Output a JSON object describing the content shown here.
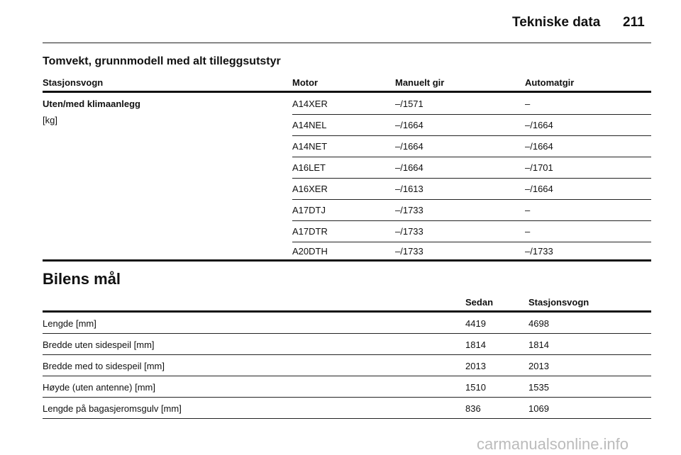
{
  "header": {
    "section": "Tekniske data",
    "page": "211"
  },
  "weight_table": {
    "title": "Tomvekt, grunnmodell med alt tilleggsutstyr",
    "columns": [
      "Stasjonsvogn",
      "Motor",
      "Manuelt gir",
      "Automatgir"
    ],
    "row_label": "Uten/med klimaanlegg",
    "unit": "[kg]",
    "rows": [
      [
        "A14XER",
        "–/1571",
        "–"
      ],
      [
        "A14NEL",
        "–/1664",
        "–/1664"
      ],
      [
        "A14NET",
        "–/1664",
        "–/1664"
      ],
      [
        "A16LET",
        "–/1664",
        "–/1701"
      ],
      [
        "A16XER",
        "–/1613",
        "–/1664"
      ],
      [
        "A17DTJ",
        "–/1733",
        "–"
      ],
      [
        "A17DTR",
        "–/1733",
        "–"
      ],
      [
        "A20DTH",
        "–/1733",
        "–/1733"
      ]
    ]
  },
  "dimensions_table": {
    "title": "Bilens mål",
    "columns": [
      "Sedan",
      "Stasjonsvogn"
    ],
    "rows": [
      [
        "Lengde [mm]",
        4419,
        4698
      ],
      [
        "Bredde uten sidespeil [mm]",
        1814,
        1814
      ],
      [
        "Bredde med to sidespeil [mm]",
        2013,
        2013
      ],
      [
        "Høyde (uten antenne) [mm]",
        1510,
        1535
      ],
      [
        "Lengde på bagasjeromsgulv [mm]",
        836,
        1069
      ]
    ]
  },
  "watermark": "carmanualsonline.info"
}
